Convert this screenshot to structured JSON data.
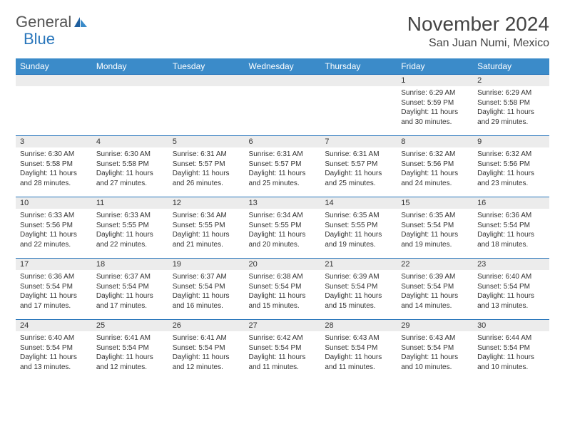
{
  "brand": {
    "part1": "General",
    "part2": "Blue"
  },
  "title": "November 2024",
  "location": "San Juan Numi, Mexico",
  "colors": {
    "header_bg": "#3b8bc9",
    "header_text": "#ffffff",
    "border": "#2976bb",
    "daynum_bg": "#ececec",
    "text": "#333333",
    "brand_gray": "#555555",
    "brand_blue": "#2976bb",
    "page_bg": "#ffffff"
  },
  "typography": {
    "month_title_fontsize": 28,
    "location_fontsize": 16,
    "logo_fontsize": 22,
    "weekday_fontsize": 12,
    "daynum_fontsize": 11,
    "cell_fontsize": 10
  },
  "weekdays": [
    "Sunday",
    "Monday",
    "Tuesday",
    "Wednesday",
    "Thursday",
    "Friday",
    "Saturday"
  ],
  "weeks": [
    [
      null,
      null,
      null,
      null,
      null,
      {
        "n": "1",
        "sr": "Sunrise: 6:29 AM",
        "ss": "Sunset: 5:59 PM",
        "dl": "Daylight: 11 hours and 30 minutes."
      },
      {
        "n": "2",
        "sr": "Sunrise: 6:29 AM",
        "ss": "Sunset: 5:58 PM",
        "dl": "Daylight: 11 hours and 29 minutes."
      }
    ],
    [
      {
        "n": "3",
        "sr": "Sunrise: 6:30 AM",
        "ss": "Sunset: 5:58 PM",
        "dl": "Daylight: 11 hours and 28 minutes."
      },
      {
        "n": "4",
        "sr": "Sunrise: 6:30 AM",
        "ss": "Sunset: 5:58 PM",
        "dl": "Daylight: 11 hours and 27 minutes."
      },
      {
        "n": "5",
        "sr": "Sunrise: 6:31 AM",
        "ss": "Sunset: 5:57 PM",
        "dl": "Daylight: 11 hours and 26 minutes."
      },
      {
        "n": "6",
        "sr": "Sunrise: 6:31 AM",
        "ss": "Sunset: 5:57 PM",
        "dl": "Daylight: 11 hours and 25 minutes."
      },
      {
        "n": "7",
        "sr": "Sunrise: 6:31 AM",
        "ss": "Sunset: 5:57 PM",
        "dl": "Daylight: 11 hours and 25 minutes."
      },
      {
        "n": "8",
        "sr": "Sunrise: 6:32 AM",
        "ss": "Sunset: 5:56 PM",
        "dl": "Daylight: 11 hours and 24 minutes."
      },
      {
        "n": "9",
        "sr": "Sunrise: 6:32 AM",
        "ss": "Sunset: 5:56 PM",
        "dl": "Daylight: 11 hours and 23 minutes."
      }
    ],
    [
      {
        "n": "10",
        "sr": "Sunrise: 6:33 AM",
        "ss": "Sunset: 5:56 PM",
        "dl": "Daylight: 11 hours and 22 minutes."
      },
      {
        "n": "11",
        "sr": "Sunrise: 6:33 AM",
        "ss": "Sunset: 5:55 PM",
        "dl": "Daylight: 11 hours and 22 minutes."
      },
      {
        "n": "12",
        "sr": "Sunrise: 6:34 AM",
        "ss": "Sunset: 5:55 PM",
        "dl": "Daylight: 11 hours and 21 minutes."
      },
      {
        "n": "13",
        "sr": "Sunrise: 6:34 AM",
        "ss": "Sunset: 5:55 PM",
        "dl": "Daylight: 11 hours and 20 minutes."
      },
      {
        "n": "14",
        "sr": "Sunrise: 6:35 AM",
        "ss": "Sunset: 5:55 PM",
        "dl": "Daylight: 11 hours and 19 minutes."
      },
      {
        "n": "15",
        "sr": "Sunrise: 6:35 AM",
        "ss": "Sunset: 5:54 PM",
        "dl": "Daylight: 11 hours and 19 minutes."
      },
      {
        "n": "16",
        "sr": "Sunrise: 6:36 AM",
        "ss": "Sunset: 5:54 PM",
        "dl": "Daylight: 11 hours and 18 minutes."
      }
    ],
    [
      {
        "n": "17",
        "sr": "Sunrise: 6:36 AM",
        "ss": "Sunset: 5:54 PM",
        "dl": "Daylight: 11 hours and 17 minutes."
      },
      {
        "n": "18",
        "sr": "Sunrise: 6:37 AM",
        "ss": "Sunset: 5:54 PM",
        "dl": "Daylight: 11 hours and 17 minutes."
      },
      {
        "n": "19",
        "sr": "Sunrise: 6:37 AM",
        "ss": "Sunset: 5:54 PM",
        "dl": "Daylight: 11 hours and 16 minutes."
      },
      {
        "n": "20",
        "sr": "Sunrise: 6:38 AM",
        "ss": "Sunset: 5:54 PM",
        "dl": "Daylight: 11 hours and 15 minutes."
      },
      {
        "n": "21",
        "sr": "Sunrise: 6:39 AM",
        "ss": "Sunset: 5:54 PM",
        "dl": "Daylight: 11 hours and 15 minutes."
      },
      {
        "n": "22",
        "sr": "Sunrise: 6:39 AM",
        "ss": "Sunset: 5:54 PM",
        "dl": "Daylight: 11 hours and 14 minutes."
      },
      {
        "n": "23",
        "sr": "Sunrise: 6:40 AM",
        "ss": "Sunset: 5:54 PM",
        "dl": "Daylight: 11 hours and 13 minutes."
      }
    ],
    [
      {
        "n": "24",
        "sr": "Sunrise: 6:40 AM",
        "ss": "Sunset: 5:54 PM",
        "dl": "Daylight: 11 hours and 13 minutes."
      },
      {
        "n": "25",
        "sr": "Sunrise: 6:41 AM",
        "ss": "Sunset: 5:54 PM",
        "dl": "Daylight: 11 hours and 12 minutes."
      },
      {
        "n": "26",
        "sr": "Sunrise: 6:41 AM",
        "ss": "Sunset: 5:54 PM",
        "dl": "Daylight: 11 hours and 12 minutes."
      },
      {
        "n": "27",
        "sr": "Sunrise: 6:42 AM",
        "ss": "Sunset: 5:54 PM",
        "dl": "Daylight: 11 hours and 11 minutes."
      },
      {
        "n": "28",
        "sr": "Sunrise: 6:43 AM",
        "ss": "Sunset: 5:54 PM",
        "dl": "Daylight: 11 hours and 11 minutes."
      },
      {
        "n": "29",
        "sr": "Sunrise: 6:43 AM",
        "ss": "Sunset: 5:54 PM",
        "dl": "Daylight: 11 hours and 10 minutes."
      },
      {
        "n": "30",
        "sr": "Sunrise: 6:44 AM",
        "ss": "Sunset: 5:54 PM",
        "dl": "Daylight: 11 hours and 10 minutes."
      }
    ]
  ]
}
